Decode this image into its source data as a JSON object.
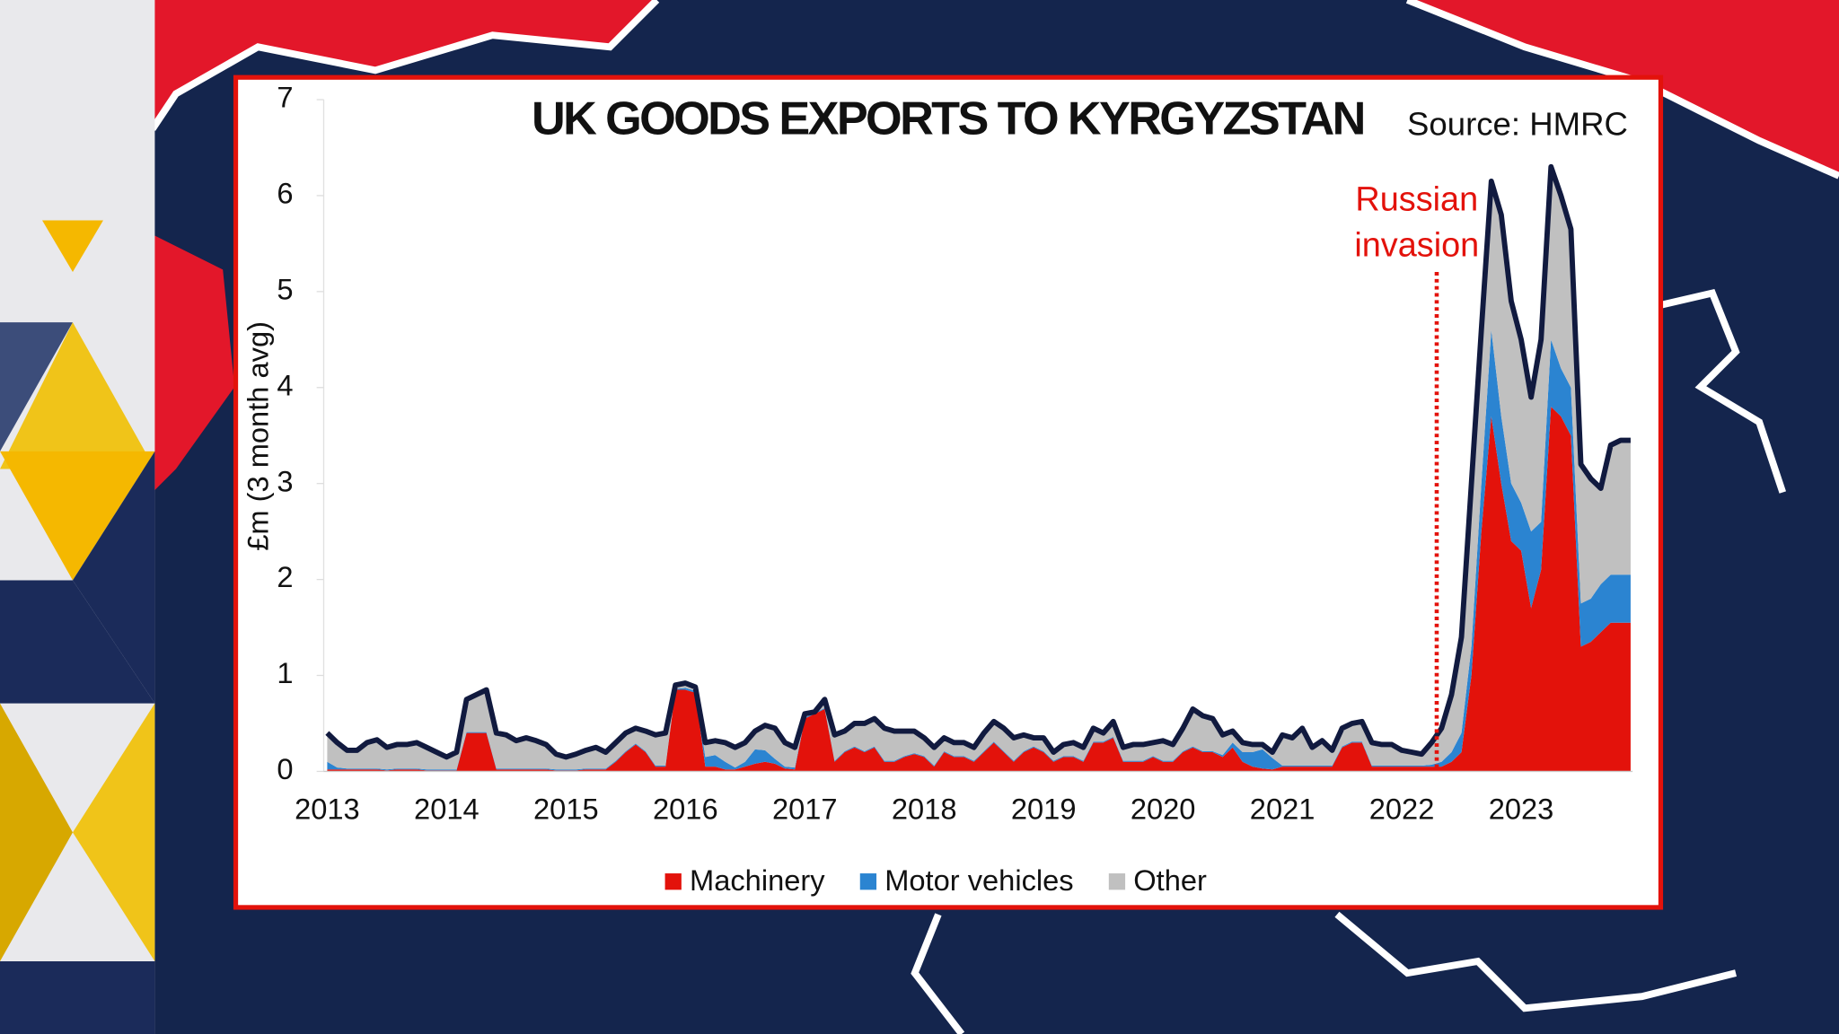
{
  "chart_data": {
    "type": "stacked_area",
    "title": "UK GOODS EXPORTS TO KYRGYZSTAN",
    "source": "Source: HMRC",
    "y_label": "£m (3 month avg)",
    "annotation": [
      "Russian",
      "invasion"
    ],
    "annotation_color": "#e3120b",
    "line_color": "#111a3f",
    "categories": [
      "2013",
      null,
      null,
      null,
      null,
      null,
      null,
      null,
      null,
      null,
      null,
      null,
      "2014",
      null,
      null,
      null,
      null,
      null,
      null,
      null,
      null,
      null,
      null,
      null,
      "2015",
      null,
      null,
      null,
      null,
      null,
      null,
      null,
      null,
      null,
      null,
      null,
      "2016",
      null,
      null,
      null,
      null,
      null,
      null,
      null,
      null,
      null,
      null,
      null,
      "2017",
      null,
      null,
      null,
      null,
      null,
      null,
      null,
      null,
      null,
      null,
      null,
      "2018",
      null,
      null,
      null,
      null,
      null,
      null,
      null,
      null,
      null,
      null,
      null,
      "2019",
      null,
      null,
      null,
      null,
      null,
      null,
      null,
      null,
      null,
      null,
      null,
      "2020",
      null,
      null,
      null,
      null,
      null,
      null,
      null,
      null,
      null,
      null,
      null,
      "2021",
      null,
      null,
      null,
      null,
      null,
      null,
      null,
      null,
      null,
      null,
      null,
      "2022",
      null,
      null,
      null,
      null,
      null,
      null,
      null,
      null,
      null,
      null,
      null,
      "2023",
      null,
      null,
      null,
      null,
      null,
      null,
      null,
      null,
      null,
      null,
      null
    ],
    "series": [
      {
        "name": "Machinery",
        "color": "#e3120b",
        "values": [
          0.02,
          0.02,
          0.02,
          0.02,
          0.02,
          0.02,
          0.01,
          0.02,
          0.02,
          0.02,
          0.01,
          0.01,
          0.01,
          0.01,
          0.4,
          0.4,
          0.4,
          0.02,
          0.02,
          0.02,
          0.02,
          0.02,
          0.02,
          0.01,
          0.01,
          0.01,
          0.02,
          0.02,
          0.02,
          0.1,
          0.2,
          0.28,
          0.2,
          0.05,
          0.05,
          0.85,
          0.85,
          0.82,
          0.05,
          0.05,
          0.02,
          0.02,
          0.05,
          0.08,
          0.1,
          0.08,
          0.03,
          0.02,
          0.55,
          0.6,
          0.65,
          0.1,
          0.2,
          0.25,
          0.2,
          0.25,
          0.1,
          0.1,
          0.15,
          0.18,
          0.15,
          0.05,
          0.2,
          0.15,
          0.15,
          0.1,
          0.2,
          0.3,
          0.2,
          0.1,
          0.2,
          0.25,
          0.2,
          0.1,
          0.15,
          0.15,
          0.1,
          0.3,
          0.3,
          0.35,
          0.1,
          0.1,
          0.1,
          0.15,
          0.1,
          0.1,
          0.2,
          0.25,
          0.2,
          0.2,
          0.15,
          0.25,
          0.1,
          0.05,
          0.03,
          0.02,
          0.05,
          0.05,
          0.05,
          0.05,
          0.05,
          0.05,
          0.25,
          0.3,
          0.3,
          0.05,
          0.05,
          0.05,
          0.05,
          0.05,
          0.05,
          0.05,
          0.05,
          0.1,
          0.2,
          1.0,
          2.5,
          3.7,
          3.0,
          2.4,
          2.3,
          1.7,
          2.1,
          3.8,
          3.7,
          3.5,
          1.3,
          1.35,
          1.45,
          1.55,
          1.55,
          1.55
        ]
      },
      {
        "name": "Motor vehicles",
        "color": "#2b84d1",
        "values": [
          0.08,
          0.02,
          0.01,
          0.01,
          0.01,
          0.01,
          0.01,
          0.01,
          0.01,
          0.01,
          0.01,
          0.01,
          0.01,
          0.01,
          0.01,
          0.01,
          0.01,
          0.01,
          0.01,
          0.01,
          0.01,
          0.01,
          0.01,
          0.01,
          0.01,
          0.01,
          0.01,
          0.01,
          0.01,
          0.01,
          0.01,
          0.01,
          0.01,
          0.01,
          0.01,
          0.01,
          0.02,
          0.02,
          0.1,
          0.12,
          0.08,
          0.02,
          0.05,
          0.15,
          0.12,
          0.05,
          0.02,
          0.02,
          0.01,
          0.01,
          0.01,
          0.01,
          0.01,
          0.01,
          0.01,
          0.01,
          0.01,
          0.01,
          0.01,
          0.01,
          0.01,
          0.01,
          0.01,
          0.01,
          0.01,
          0.01,
          0.01,
          0.01,
          0.01,
          0.01,
          0.01,
          0.01,
          0.01,
          0.01,
          0.01,
          0.01,
          0.01,
          0.01,
          0.01,
          0.01,
          0.01,
          0.01,
          0.01,
          0.01,
          0.01,
          0.01,
          0.01,
          0.01,
          0.01,
          0.01,
          0.02,
          0.05,
          0.1,
          0.15,
          0.2,
          0.12,
          0.01,
          0.01,
          0.01,
          0.01,
          0.01,
          0.01,
          0.01,
          0.01,
          0.01,
          0.01,
          0.01,
          0.01,
          0.01,
          0.01,
          0.01,
          0.02,
          0.05,
          0.1,
          0.2,
          0.3,
          0.5,
          0.9,
          0.7,
          0.6,
          0.5,
          0.8,
          0.5,
          0.7,
          0.5,
          0.5,
          0.45,
          0.45,
          0.5,
          0.5,
          0.5,
          0.5
        ]
      },
      {
        "name": "Other",
        "color": "#c0c0c0",
        "values": [
          0.3,
          0.26,
          0.19,
          0.19,
          0.27,
          0.3,
          0.23,
          0.25,
          0.25,
          0.27,
          0.23,
          0.18,
          0.13,
          0.18,
          0.34,
          0.39,
          0.44,
          0.37,
          0.35,
          0.29,
          0.32,
          0.29,
          0.25,
          0.16,
          0.13,
          0.16,
          0.19,
          0.22,
          0.17,
          0.19,
          0.19,
          0.16,
          0.21,
          0.32,
          0.34,
          0.04,
          0.05,
          0.04,
          0.15,
          0.15,
          0.2,
          0.21,
          0.2,
          0.19,
          0.26,
          0.32,
          0.25,
          0.21,
          0.04,
          0.01,
          0.09,
          0.27,
          0.21,
          0.24,
          0.29,
          0.29,
          0.34,
          0.31,
          0.26,
          0.23,
          0.19,
          0.19,
          0.14,
          0.14,
          0.14,
          0.14,
          0.19,
          0.21,
          0.24,
          0.24,
          0.17,
          0.09,
          0.14,
          0.09,
          0.12,
          0.14,
          0.14,
          0.14,
          0.09,
          0.16,
          0.14,
          0.17,
          0.17,
          0.14,
          0.21,
          0.17,
          0.24,
          0.39,
          0.37,
          0.34,
          0.21,
          0.12,
          0.1,
          0.08,
          0.05,
          0.06,
          0.32,
          0.29,
          0.39,
          0.19,
          0.26,
          0.16,
          0.19,
          0.19,
          0.21,
          0.24,
          0.22,
          0.22,
          0.16,
          0.14,
          0.12,
          0.23,
          0.35,
          0.6,
          1.0,
          1.7,
          1.6,
          1.55,
          2.1,
          1.9,
          1.7,
          1.4,
          1.9,
          1.8,
          1.8,
          1.65,
          1.45,
          1.25,
          1.0,
          1.35,
          1.4,
          1.4
        ]
      }
    ],
    "ylim": [
      0,
      7
    ],
    "yticks": [
      0,
      1,
      2,
      3,
      4,
      5,
      6,
      7
    ],
    "grid": false,
    "legend": "bottom"
  }
}
